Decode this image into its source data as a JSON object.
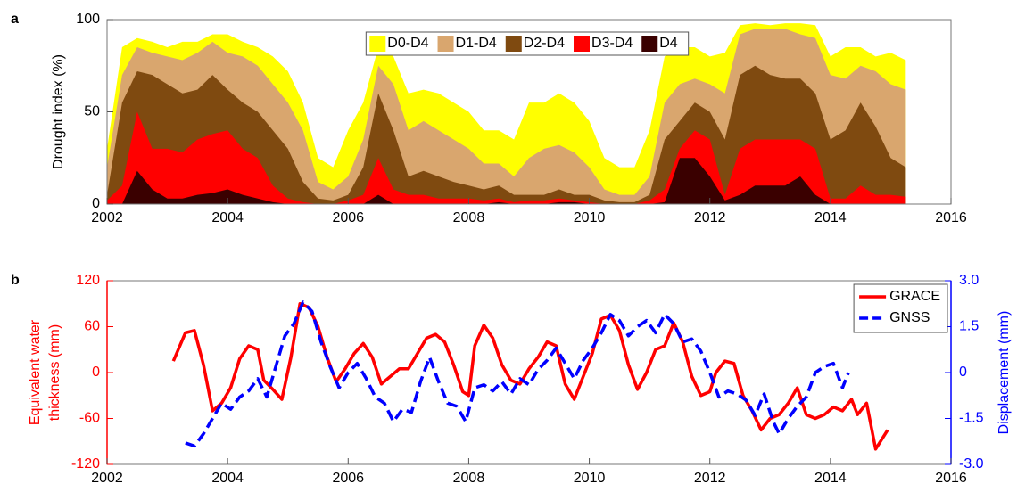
{
  "chart_data": [
    {
      "type": "area",
      "panel_label": "a",
      "ylabel": "Drought index (%)",
      "xlim": [
        2002,
        2016
      ],
      "xticks": [
        2002,
        2004,
        2006,
        2008,
        2010,
        2012,
        2014,
        2016
      ],
      "ylim": [
        0,
        100
      ],
      "yticks": [
        0,
        50,
        100
      ],
      "legend": "upper center",
      "x": [
        2002,
        2002.25,
        2002.5,
        2002.75,
        2003,
        2003.25,
        2003.5,
        2003.75,
        2004,
        2004.25,
        2004.5,
        2004.75,
        2005,
        2005.25,
        2005.5,
        2005.75,
        2006,
        2006.25,
        2006.5,
        2006.75,
        2007,
        2007.25,
        2007.5,
        2007.75,
        2008,
        2008.25,
        2008.5,
        2008.75,
        2009,
        2009.25,
        2009.5,
        2009.75,
        2010,
        2010.25,
        2010.5,
        2010.75,
        2011,
        2011.25,
        2011.5,
        2011.75,
        2012,
        2012.25,
        2012.5,
        2012.75,
        2013,
        2013.25,
        2013.5,
        2013.75,
        2014,
        2014.25,
        2014.5,
        2014.75,
        2015,
        2015.25
      ],
      "series": [
        {
          "name": "D0-D4",
          "color": "#ffff00",
          "values": [
            30,
            85,
            90,
            88,
            85,
            88,
            88,
            92,
            92,
            88,
            85,
            80,
            72,
            55,
            25,
            20,
            40,
            55,
            85,
            80,
            60,
            62,
            60,
            55,
            50,
            40,
            40,
            35,
            55,
            55,
            60,
            55,
            45,
            25,
            20,
            20,
            40,
            80,
            85,
            85,
            80,
            82,
            97,
            98,
            97,
            98,
            98,
            97,
            80,
            85,
            85,
            80,
            82,
            78
          ]
        },
        {
          "name": "D1-D4",
          "color": "#d9a66e",
          "values": [
            20,
            70,
            85,
            82,
            80,
            78,
            82,
            88,
            82,
            80,
            75,
            65,
            55,
            40,
            12,
            8,
            15,
            35,
            75,
            65,
            40,
            45,
            40,
            35,
            30,
            22,
            22,
            15,
            25,
            30,
            32,
            28,
            20,
            8,
            5,
            5,
            15,
            55,
            65,
            68,
            65,
            60,
            92,
            95,
            95,
            95,
            92,
            90,
            70,
            68,
            75,
            72,
            65,
            62
          ]
        },
        {
          "name": "D2-D4",
          "color": "#7f4a10",
          "values": [
            5,
            55,
            72,
            70,
            65,
            60,
            62,
            70,
            62,
            55,
            50,
            40,
            30,
            12,
            3,
            2,
            5,
            20,
            60,
            40,
            15,
            18,
            15,
            12,
            10,
            8,
            10,
            5,
            5,
            5,
            8,
            5,
            5,
            2,
            1,
            1,
            5,
            35,
            45,
            55,
            50,
            35,
            70,
            75,
            70,
            68,
            68,
            60,
            35,
            40,
            55,
            42,
            25,
            20
          ]
        },
        {
          "name": "D3-D4",
          "color": "#ff0000",
          "values": [
            2,
            10,
            50,
            30,
            30,
            28,
            35,
            38,
            40,
            30,
            25,
            10,
            3,
            1,
            0,
            0,
            2,
            5,
            25,
            8,
            5,
            5,
            3,
            3,
            3,
            2,
            3,
            1,
            2,
            2,
            3,
            2,
            1,
            0,
            0,
            0,
            2,
            8,
            30,
            40,
            35,
            5,
            30,
            35,
            35,
            35,
            35,
            30,
            3,
            3,
            10,
            5,
            5,
            4
          ]
        },
        {
          "name": "D4",
          "color": "#3a0000",
          "values": [
            0,
            0,
            18,
            8,
            3,
            3,
            5,
            6,
            8,
            5,
            3,
            1,
            0,
            0,
            0,
            0,
            0,
            0,
            5,
            0,
            0,
            0,
            0,
            0,
            0,
            0,
            1,
            0,
            0,
            0,
            1,
            1,
            0,
            0,
            0,
            0,
            0,
            1,
            25,
            25,
            15,
            2,
            5,
            10,
            10,
            10,
            15,
            5,
            0,
            0,
            0,
            0,
            0,
            0
          ]
        }
      ]
    },
    {
      "type": "line",
      "panel_label": "b",
      "ylabel": [
        "Equivalent water",
        "thickness (mm)"
      ],
      "y2label": "Displacement (mm)",
      "xlim": [
        2002,
        2016
      ],
      "xticks": [
        2002,
        2004,
        2006,
        2008,
        2010,
        2012,
        2014,
        2016
      ],
      "ylim": [
        -120,
        120
      ],
      "yticks": [
        -120,
        -60,
        0,
        60,
        120
      ],
      "y2lim": [
        -3,
        3
      ],
      "y2ticks": [
        {
          "value": -3,
          "label": "-3.0"
        },
        -1.5,
        0,
        1.5,
        {
          "value": 3,
          "label": "3.0"
        }
      ],
      "legend": "upper right",
      "series": [
        {
          "name": "GRACE",
          "color": "#ff0000",
          "linestyle": "solid",
          "x": [
            2003.1,
            2003.3,
            2003.45,
            2003.6,
            2003.75,
            2003.9,
            2004.05,
            2004.2,
            2004.35,
            2004.5,
            2004.6,
            2004.75,
            2004.9,
            2005.05,
            2005.2,
            2005.35,
            2005.5,
            2005.65,
            2005.8,
            2005.95,
            2006.1,
            2006.25,
            2006.4,
            2006.55,
            2006.7,
            2006.85,
            2007,
            2007.15,
            2007.3,
            2007.45,
            2007.6,
            2007.75,
            2007.9,
            2008,
            2008.1,
            2008.25,
            2008.4,
            2008.55,
            2008.7,
            2008.85,
            2009,
            2009.15,
            2009.3,
            2009.45,
            2009.6,
            2009.75,
            2009.9,
            2010.05,
            2010.2,
            2010.35,
            2010.5,
            2010.65,
            2010.8,
            2010.95,
            2011.1,
            2011.25,
            2011.4,
            2011.55,
            2011.7,
            2011.85,
            2012,
            2012.1,
            2012.25,
            2012.4,
            2012.55,
            2012.7,
            2012.85,
            2013,
            2013.15,
            2013.3,
            2013.45,
            2013.6,
            2013.75,
            2013.9,
            2014.05,
            2014.2,
            2014.35,
            2014.45,
            2014.6,
            2014.75,
            2014.95
          ],
          "values": [
            15,
            52,
            55,
            10,
            -50,
            -40,
            -20,
            18,
            35,
            30,
            -10,
            -22,
            -35,
            20,
            90,
            85,
            60,
            20,
            -12,
            5,
            25,
            38,
            20,
            -15,
            -5,
            5,
            5,
            25,
            45,
            50,
            40,
            10,
            -25,
            -30,
            35,
            62,
            45,
            10,
            -10,
            -15,
            5,
            20,
            40,
            35,
            -15,
            -35,
            -5,
            25,
            70,
            75,
            55,
            10,
            -22,
            0,
            30,
            35,
            65,
            40,
            -5,
            -30,
            -25,
            0,
            15,
            12,
            -30,
            -50,
            -75,
            -60,
            -55,
            -40,
            -20,
            -55,
            -60,
            -55,
            -45,
            -50,
            -35,
            -55,
            -40,
            -100,
            -75
          ]
        },
        {
          "name": "GNSS",
          "color": "#0000ff",
          "linestyle": "dashed",
          "axis": "y2",
          "x": [
            2003.3,
            2003.45,
            2003.6,
            2003.75,
            2003.9,
            2004.05,
            2004.2,
            2004.35,
            2004.5,
            2004.65,
            2004.8,
            2004.95,
            2005.1,
            2005.25,
            2005.4,
            2005.55,
            2005.7,
            2005.85,
            2006,
            2006.15,
            2006.3,
            2006.45,
            2006.6,
            2006.75,
            2006.9,
            2007.05,
            2007.2,
            2007.35,
            2007.5,
            2007.65,
            2007.8,
            2007.95,
            2008.1,
            2008.25,
            2008.4,
            2008.55,
            2008.7,
            2008.85,
            2009,
            2009.15,
            2009.3,
            2009.45,
            2009.6,
            2009.75,
            2009.9,
            2010.05,
            2010.2,
            2010.35,
            2010.5,
            2010.65,
            2010.8,
            2010.95,
            2011.1,
            2011.25,
            2011.4,
            2011.55,
            2011.7,
            2011.85,
            2012,
            2012.15,
            2012.3,
            2012.45,
            2012.6,
            2012.75,
            2012.9,
            2013.05,
            2013.15,
            2013.3,
            2013.45,
            2013.6,
            2013.75,
            2013.9,
            2014.05,
            2014.2,
            2014.3
          ],
          "values": [
            -2.3,
            -2.4,
            -2.0,
            -1.5,
            -1.0,
            -1.2,
            -0.8,
            -0.6,
            -0.2,
            -0.8,
            0.2,
            1.2,
            1.6,
            2.3,
            2.0,
            1.0,
            0.2,
            -0.5,
            0,
            0.3,
            -0.2,
            -0.8,
            -1.0,
            -1.6,
            -1.2,
            -1.3,
            -0.3,
            0.5,
            -0.3,
            -1.0,
            -1.1,
            -1.6,
            -0.5,
            -0.4,
            -0.6,
            -0.3,
            -0.7,
            -0.2,
            -0.4,
            0.1,
            0.4,
            0.8,
            0.3,
            -0.2,
            0.4,
            0.8,
            1.3,
            1.9,
            1.7,
            1.2,
            1.5,
            1.7,
            1.3,
            1.9,
            1.6,
            1.0,
            1.1,
            0.7,
            0,
            -0.8,
            -0.6,
            -0.7,
            -0.9,
            -1.4,
            -0.7,
            -1.6,
            -2.0,
            -1.5,
            -1.1,
            -0.8,
            0,
            0.2,
            0.3,
            -0.5,
            0
          ]
        }
      ]
    }
  ]
}
